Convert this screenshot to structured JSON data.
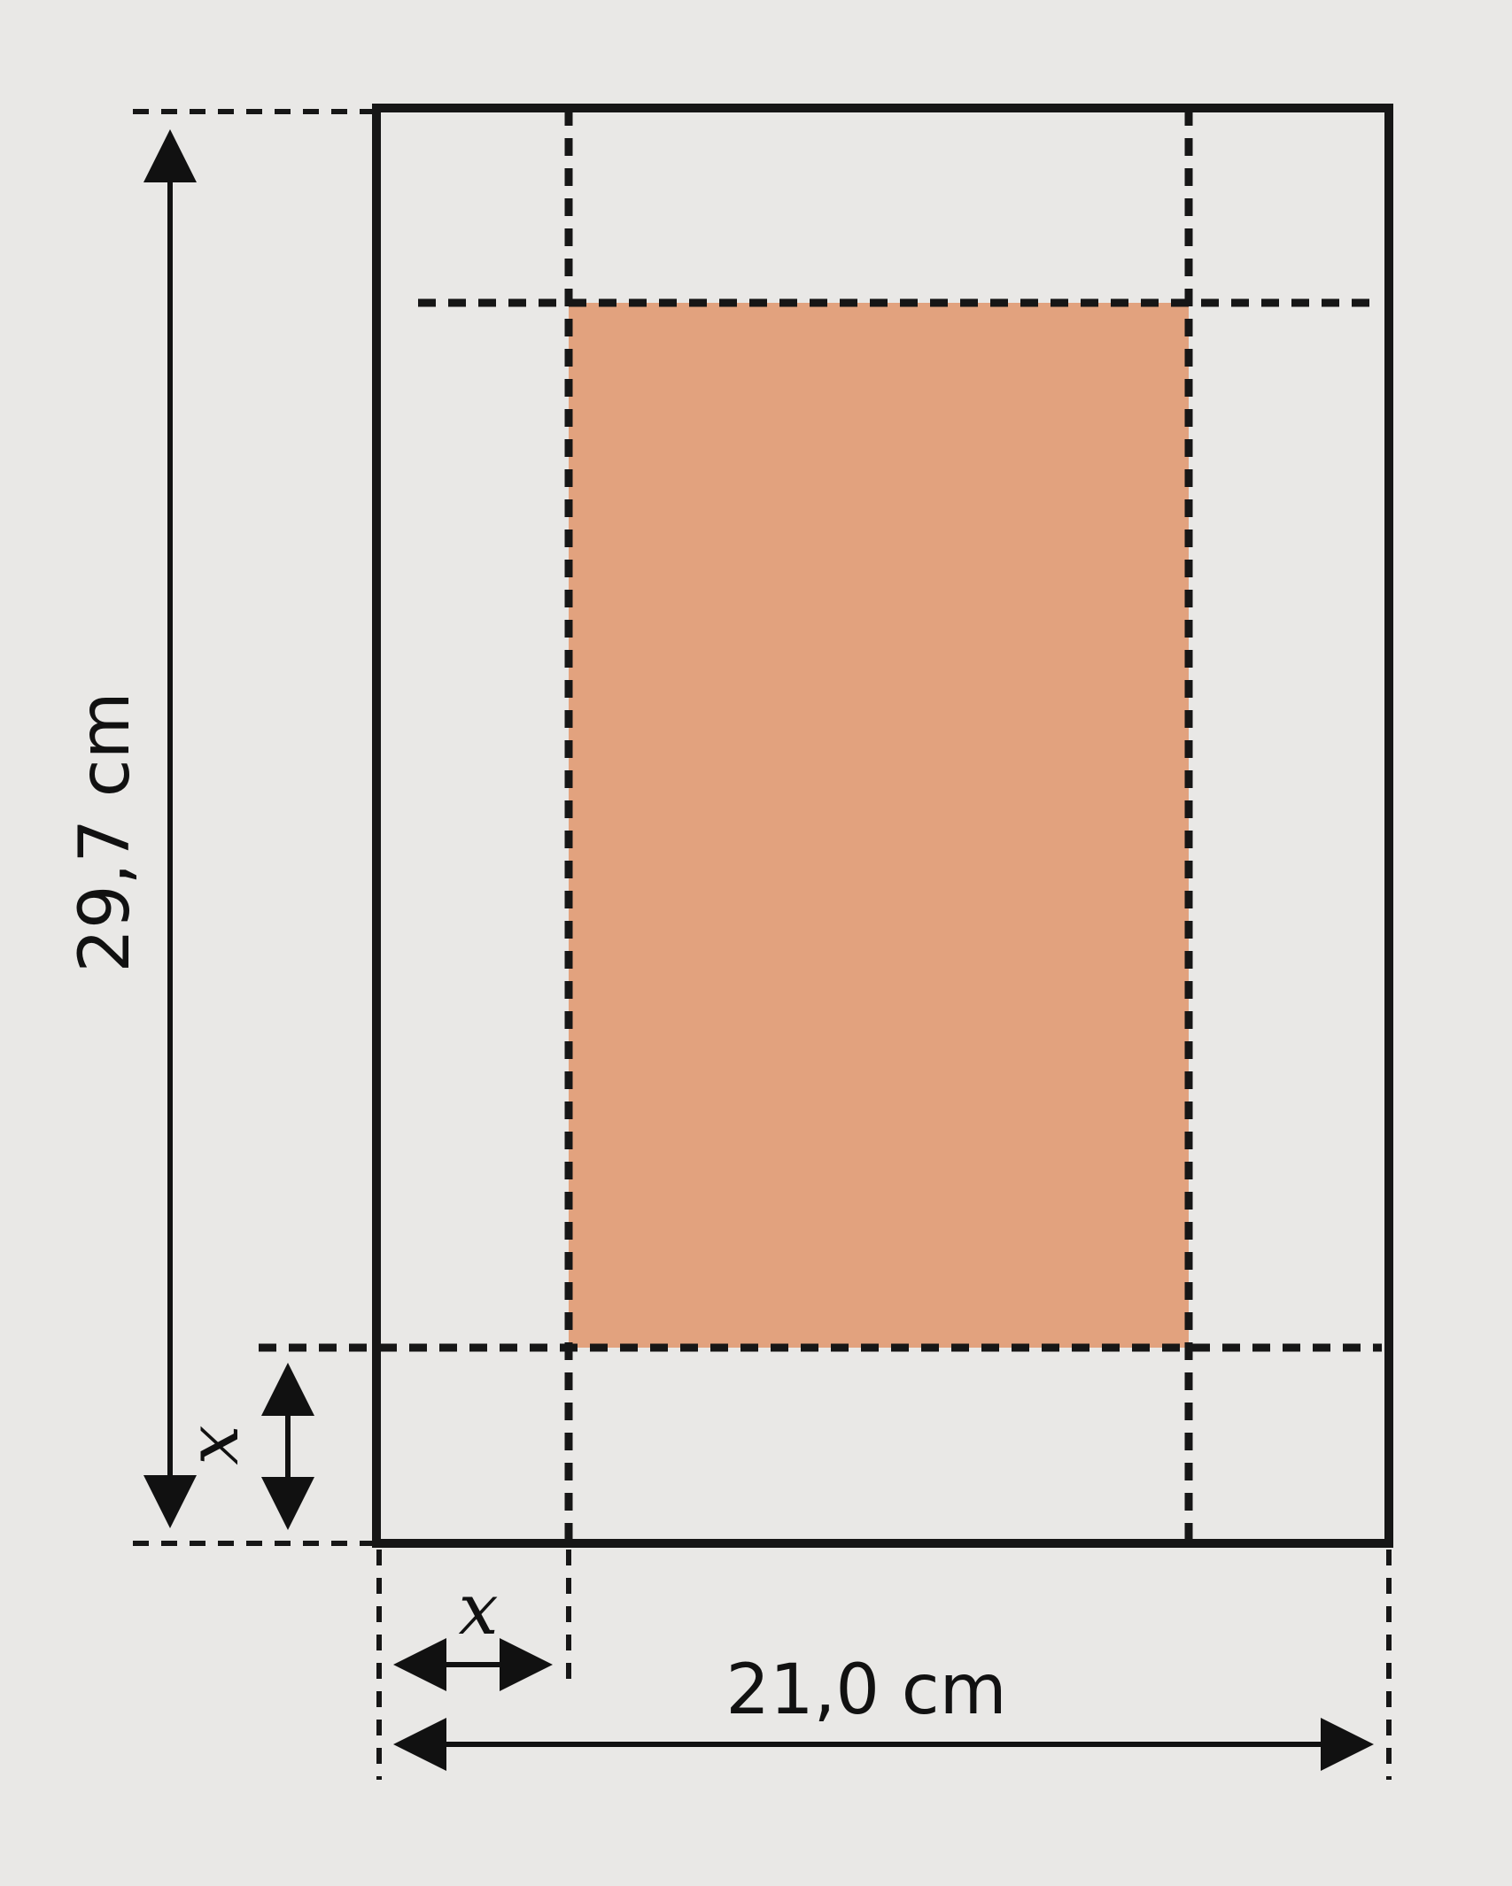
{
  "figure": {
    "height_label": "29,7 cm",
    "width_label": "21,0 cm",
    "cut_label_vertical": "x",
    "cut_label_horizontal": "x"
  },
  "colors": {
    "background": "#e9e8e6",
    "shaded_region": "#e2a27e",
    "stroke": "#161616"
  }
}
